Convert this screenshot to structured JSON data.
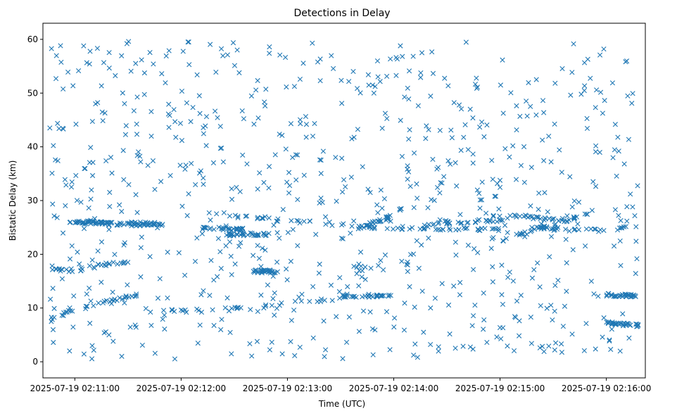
{
  "chart_data": {
    "type": "scatter",
    "title": "Detections in Delay",
    "xlabel": "Time (UTC)",
    "ylabel": "Bistatic Delay (km)",
    "marker": "x",
    "color": "#1f77b4",
    "xlim_seconds": [
      -18,
      322
    ],
    "ylim": [
      -3.0,
      63.0
    ],
    "x_ticks": [
      {
        "t": 0,
        "label": "2025-07-19 02:11:00"
      },
      {
        "t": 60,
        "label": "2025-07-19 02:12:00"
      },
      {
        "t": 120,
        "label": "2025-07-19 02:13:00"
      },
      {
        "t": 180,
        "label": "2025-07-19 02:14:00"
      },
      {
        "t": 240,
        "label": "2025-07-19 02:15:00"
      },
      {
        "t": 300,
        "label": "2025-07-19 02:16:00"
      }
    ],
    "y_ticks": [
      {
        "v": 0,
        "label": "0"
      },
      {
        "v": 10,
        "label": "10"
      },
      {
        "v": 20,
        "label": "20"
      },
      {
        "v": 30,
        "label": "30"
      },
      {
        "v": 40,
        "label": "40"
      },
      {
        "v": 50,
        "label": "50"
      },
      {
        "v": 60,
        "label": "60"
      }
    ],
    "x_range_seconds": [
      -15,
      318
    ],
    "y_range": [
      0.5,
      59.8
    ],
    "approx_point_count": 1400,
    "tracks": [
      {
        "t": [
          -13,
          0,
          8,
          15,
          20,
          30
        ],
        "y": [
          17.2,
          17.0,
          17.5,
          18.0,
          18.3,
          18.6
        ]
      },
      {
        "t": [
          0,
          12,
          25,
          37
        ],
        "y": [
          26.0,
          25.8,
          25.6,
          25.5
        ]
      },
      {
        "t": [
          -5,
          20
        ],
        "y": [
          26.2,
          25.8
        ]
      },
      {
        "t": [
          30,
          50
        ],
        "y": [
          25.8,
          25.6
        ]
      },
      {
        "t": [
          50,
          75,
          100,
          120,
          140,
          155
        ],
        "y": [
          9.5,
          9.8,
          10.0,
          10.8,
          11.5,
          12.0
        ]
      },
      {
        "t": [
          72,
          82,
          95
        ],
        "y": [
          24.8,
          24.8,
          24.6
        ]
      },
      {
        "t": [
          75,
          100,
          130,
          150,
          170
        ],
        "y": [
          27.5,
          26.8,
          26.0,
          25.5,
          25.0
        ]
      },
      {
        "t": [
          85,
          100,
          110
        ],
        "y": [
          23.6,
          23.7,
          23.8
        ]
      },
      {
        "t": [
          100,
          110,
          115
        ],
        "y": [
          16.8,
          16.8,
          16.8
        ]
      },
      {
        "t": [
          150,
          165,
          180
        ],
        "y": [
          12.3,
          12.3,
          12.2
        ]
      },
      {
        "t": [
          160,
          175,
          185
        ],
        "y": [
          24.9,
          26.5,
          28.5
        ]
      },
      {
        "t": [
          175,
          200,
          220,
          240
        ],
        "y": [
          25.0,
          24.8,
          24.7,
          24.6
        ]
      },
      {
        "t": [
          195,
          215,
          230,
          250
        ],
        "y": [
          25.5,
          26.0,
          26.2,
          26.0
        ]
      },
      {
        "t": [
          230,
          250,
          270,
          285
        ],
        "y": [
          27.0,
          27.0,
          26.5,
          26.2
        ]
      },
      {
        "t": [
          240,
          255,
          270,
          290
        ],
        "y": [
          22.5,
          24.0,
          25.5,
          27.5
        ]
      },
      {
        "t": [
          260,
          280,
          300,
          318
        ],
        "y": [
          24.9,
          24.6,
          24.4,
          25.4
        ]
      },
      {
        "t": [
          -14,
          0,
          15,
          35
        ],
        "y": [
          8.0,
          9.5,
          11.0,
          12.5
        ]
      },
      {
        "t": [
          300,
          318
        ],
        "y": [
          12.5,
          12.2
        ]
      },
      {
        "t": [
          300,
          318
        ],
        "y": [
          7.2,
          6.8
        ]
      }
    ]
  }
}
